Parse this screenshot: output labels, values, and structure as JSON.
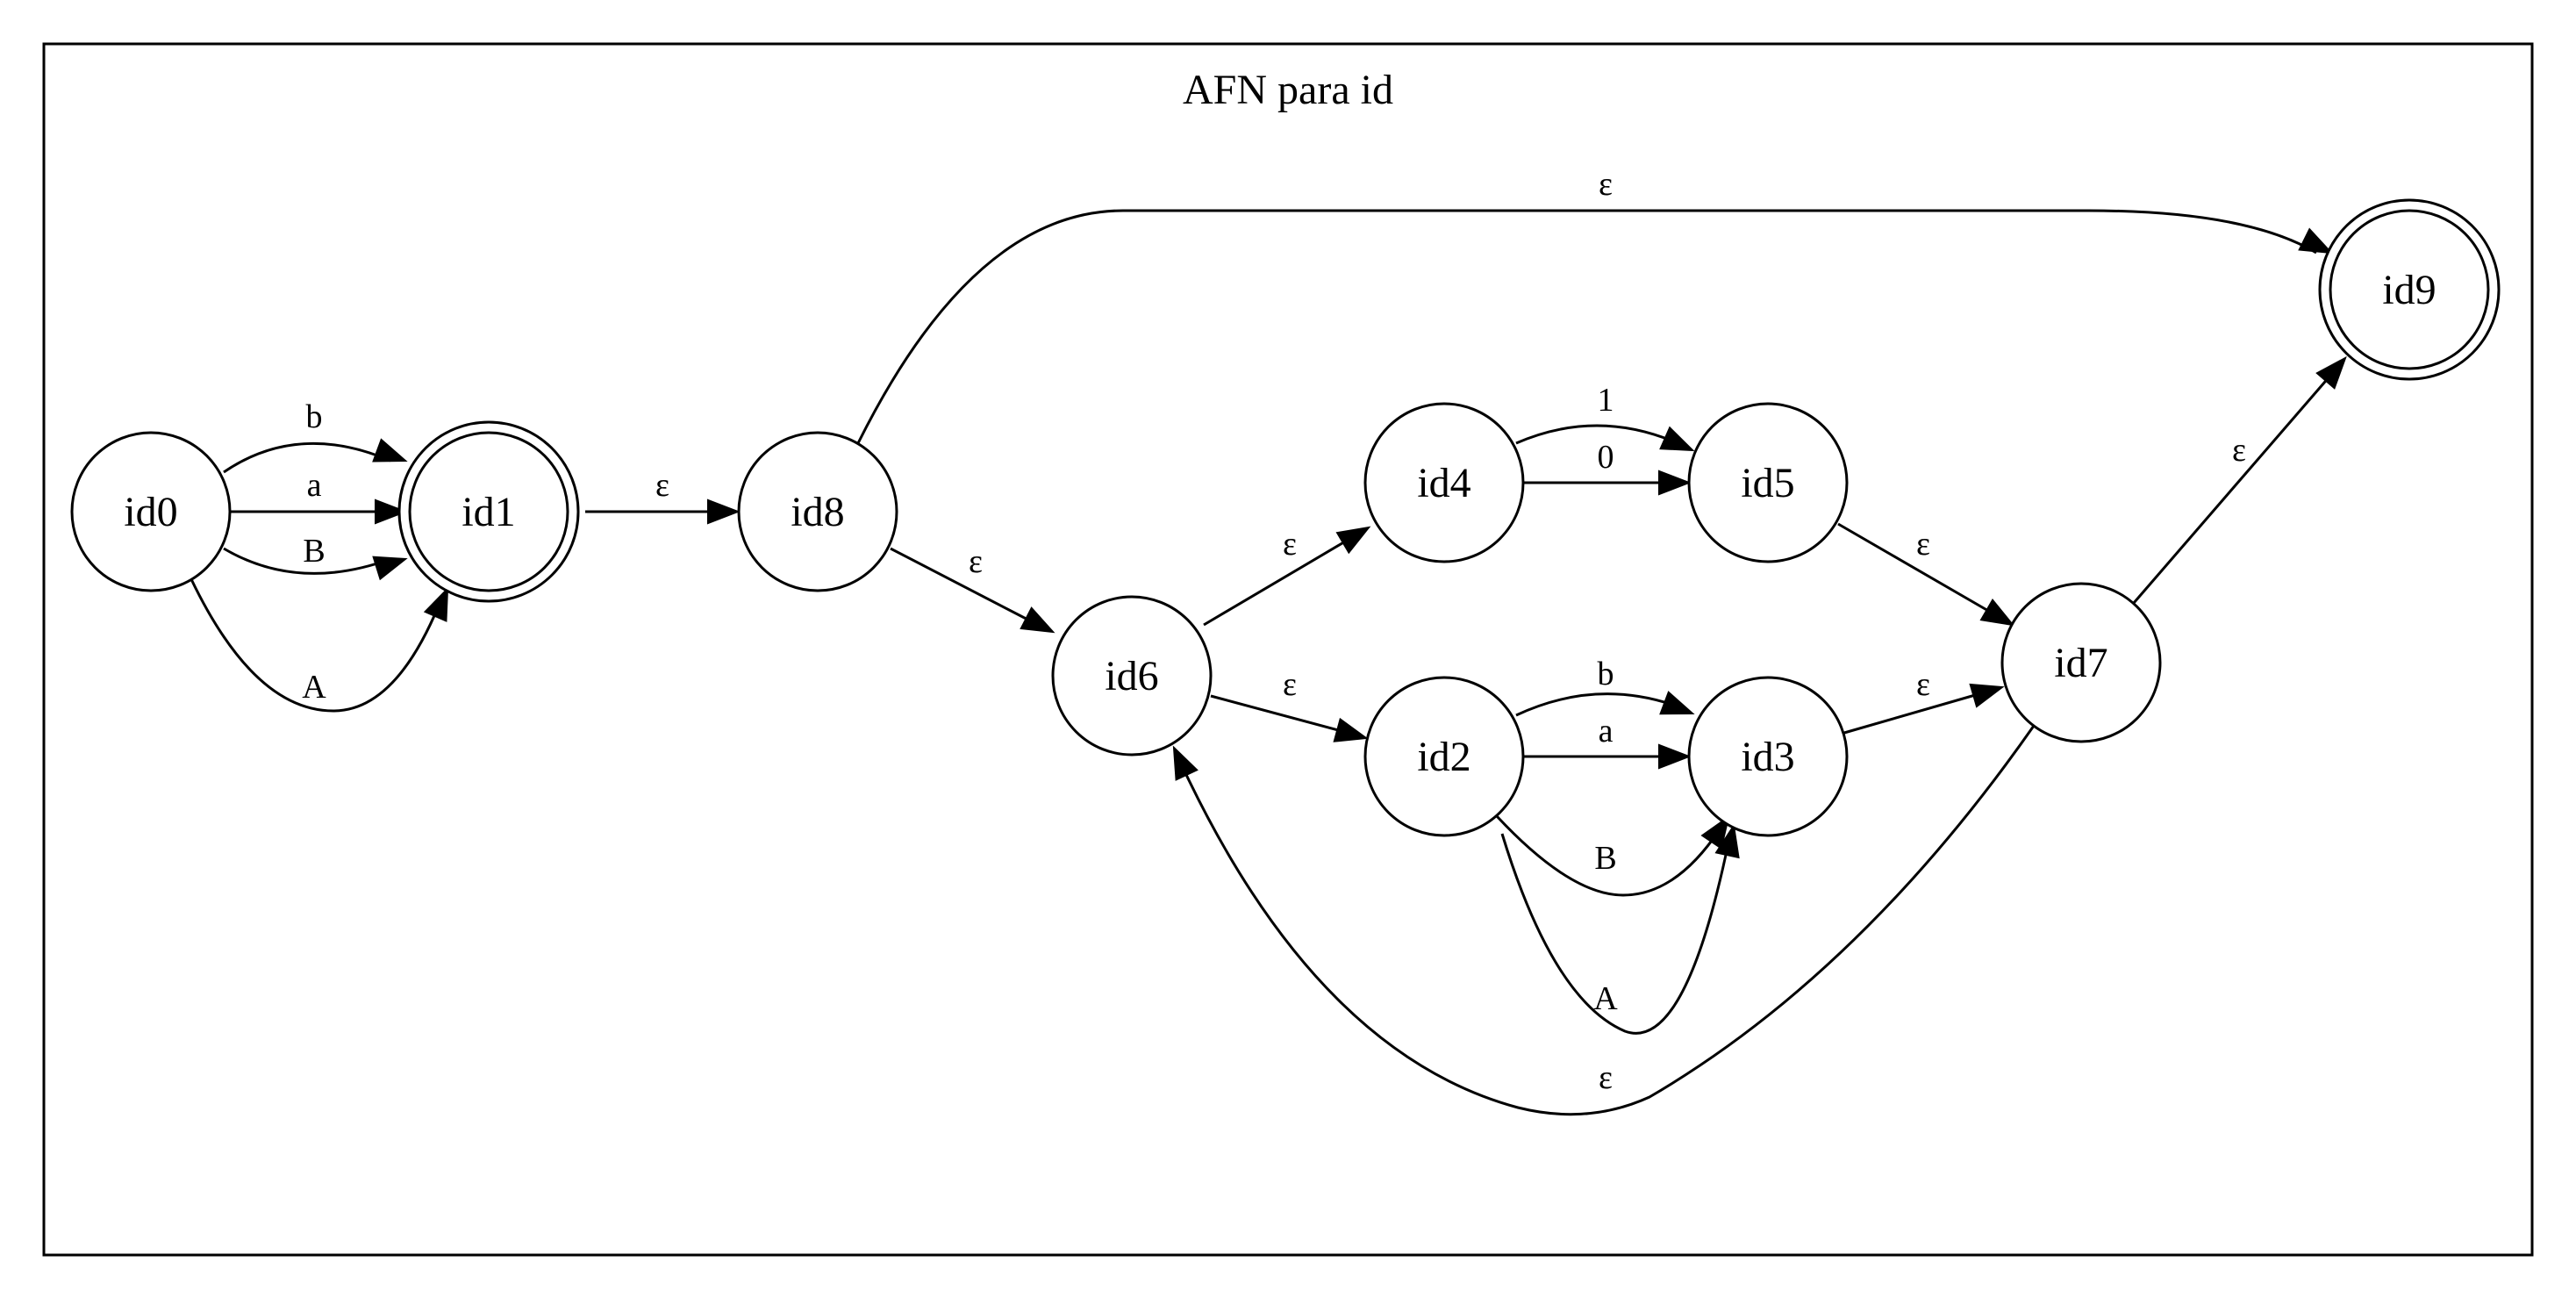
{
  "title": "AFN para id",
  "nodes": [
    {
      "id": "id0",
      "label": "id0",
      "accepting": false
    },
    {
      "id": "id1",
      "label": "id1",
      "accepting": true
    },
    {
      "id": "id8",
      "label": "id8",
      "accepting": false
    },
    {
      "id": "id6",
      "label": "id6",
      "accepting": false
    },
    {
      "id": "id4",
      "label": "id4",
      "accepting": false
    },
    {
      "id": "id5",
      "label": "id5",
      "accepting": false
    },
    {
      "id": "id2",
      "label": "id2",
      "accepting": false
    },
    {
      "id": "id3",
      "label": "id3",
      "accepting": false
    },
    {
      "id": "id7",
      "label": "id7",
      "accepting": false
    },
    {
      "id": "id9",
      "label": "id9",
      "accepting": true
    }
  ],
  "edges": [
    {
      "from": "id0",
      "to": "id1",
      "label": "b"
    },
    {
      "from": "id0",
      "to": "id1",
      "label": "a"
    },
    {
      "from": "id0",
      "to": "id1",
      "label": "B"
    },
    {
      "from": "id0",
      "to": "id1",
      "label": "A"
    },
    {
      "from": "id1",
      "to": "id8",
      "label": "ε"
    },
    {
      "from": "id8",
      "to": "id9",
      "label": "ε"
    },
    {
      "from": "id8",
      "to": "id6",
      "label": "ε"
    },
    {
      "from": "id6",
      "to": "id4",
      "label": "ε"
    },
    {
      "from": "id6",
      "to": "id2",
      "label": "ε"
    },
    {
      "from": "id4",
      "to": "id5",
      "label": "1"
    },
    {
      "from": "id4",
      "to": "id5",
      "label": "0"
    },
    {
      "from": "id2",
      "to": "id3",
      "label": "b"
    },
    {
      "from": "id2",
      "to": "id3",
      "label": "a"
    },
    {
      "from": "id2",
      "to": "id3",
      "label": "B"
    },
    {
      "from": "id2",
      "to": "id3",
      "label": "A"
    },
    {
      "from": "id5",
      "to": "id7",
      "label": "ε"
    },
    {
      "from": "id3",
      "to": "id7",
      "label": "ε"
    },
    {
      "from": "id7",
      "to": "id9",
      "label": "ε"
    },
    {
      "from": "id7",
      "to": "id6",
      "label": "ε"
    }
  ]
}
